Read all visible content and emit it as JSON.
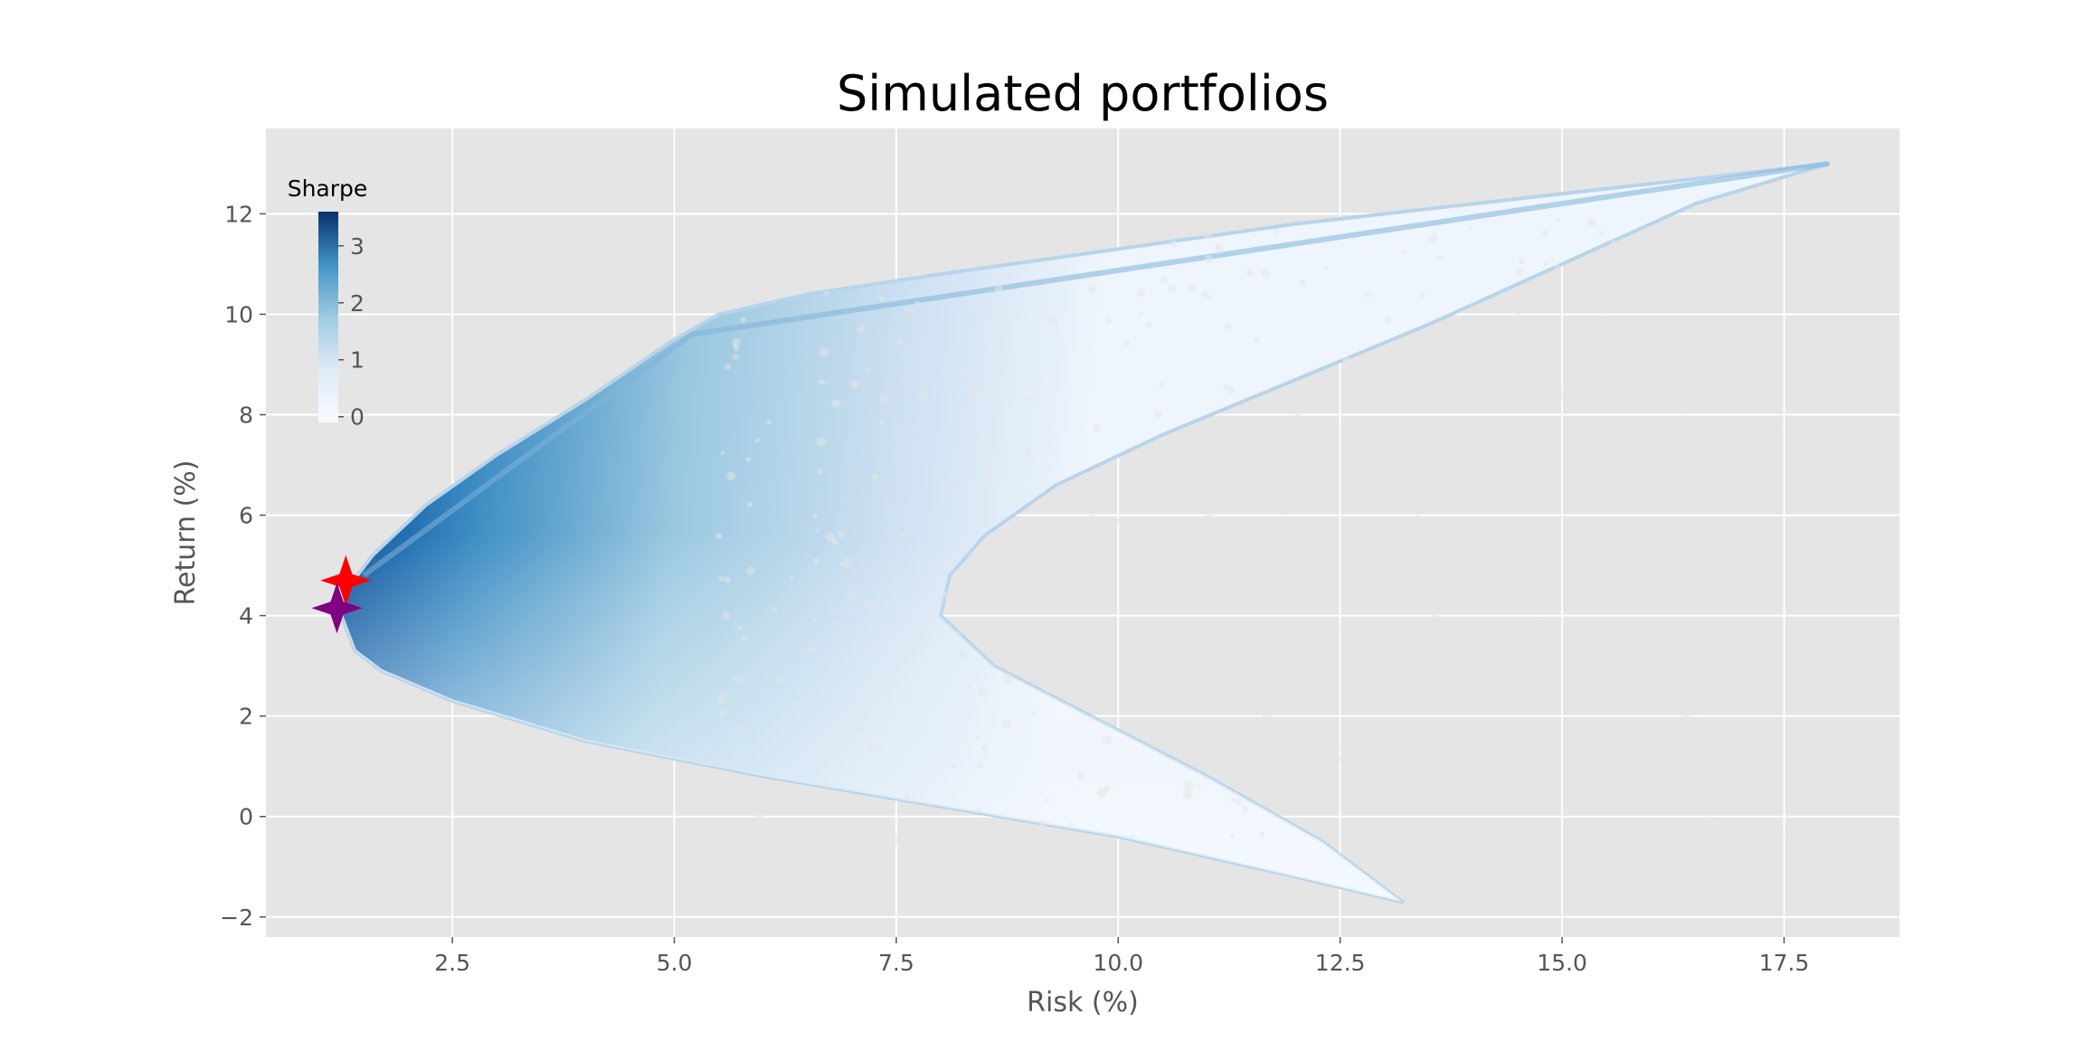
{
  "chart_data": {
    "type": "scatter",
    "title": "Simulated portfolios",
    "xlabel": "Risk (%)",
    "ylabel": "Return (%)",
    "xlim": [
      0.4,
      18.8
    ],
    "ylim": [
      -2.4,
      13.7
    ],
    "xticks": [
      2.5,
      5.0,
      7.5,
      10.0,
      12.5,
      15.0,
      17.5
    ],
    "xtick_labels": [
      "2.5",
      "5.0",
      "7.5",
      "10.0",
      "12.5",
      "15.0",
      "17.5"
    ],
    "yticks": [
      -2,
      0,
      2,
      4,
      6,
      8,
      10,
      12
    ],
    "ytick_labels": [
      "−2",
      "0",
      "2",
      "4",
      "6",
      "8",
      "10",
      "12"
    ],
    "grid": true,
    "style": "ggplot",
    "colormap": "Blues",
    "colorbar": {
      "title": "Sharpe",
      "range": [
        -0.1,
        3.6
      ],
      "ticks": [
        0,
        1,
        2,
        3
      ],
      "tick_labels": [
        "0",
        "1",
        "2",
        "3"
      ],
      "placement": "upper-left inside axes"
    },
    "cloud_outline": [
      [
        1.3,
        4.5
      ],
      [
        1.6,
        5.2
      ],
      [
        2.2,
        6.2
      ],
      [
        3.0,
        7.2
      ],
      [
        4.0,
        8.3
      ],
      [
        5.0,
        9.5
      ],
      [
        5.5,
        10.0
      ],
      [
        6.5,
        10.4
      ],
      [
        8.0,
        10.8
      ],
      [
        10.0,
        11.3
      ],
      [
        12.0,
        11.8
      ],
      [
        14.0,
        12.2
      ],
      [
        16.0,
        12.6
      ],
      [
        18.0,
        13.0
      ],
      [
        16.5,
        12.2
      ],
      [
        15.0,
        11.0
      ],
      [
        13.5,
        9.8
      ],
      [
        12.0,
        8.7
      ],
      [
        10.5,
        7.6
      ],
      [
        9.3,
        6.6
      ],
      [
        8.5,
        5.6
      ],
      [
        8.1,
        4.8
      ],
      [
        8.0,
        4.0
      ],
      [
        8.6,
        3.0
      ],
      [
        9.8,
        1.9
      ],
      [
        11.0,
        0.8
      ],
      [
        12.3,
        -0.5
      ],
      [
        13.2,
        -1.7
      ],
      [
        12.0,
        -1.2
      ],
      [
        10.0,
        -0.4
      ],
      [
        8.0,
        0.2
      ],
      [
        6.0,
        0.8
      ],
      [
        4.0,
        1.5
      ],
      [
        2.5,
        2.3
      ],
      [
        1.7,
        2.9
      ],
      [
        1.4,
        3.3
      ],
      [
        1.25,
        4.0
      ]
    ],
    "colored_ridge": [
      [
        1.5,
        4.8
      ],
      [
        5.2,
        9.6
      ],
      [
        18.0,
        13.0
      ]
    ],
    "highlights": [
      {
        "x": 1.3,
        "y": 4.7,
        "color": "#ff0000",
        "marker": "star"
      },
      {
        "x": 1.2,
        "y": 4.15,
        "color": "#800080",
        "marker": "star"
      }
    ]
  }
}
